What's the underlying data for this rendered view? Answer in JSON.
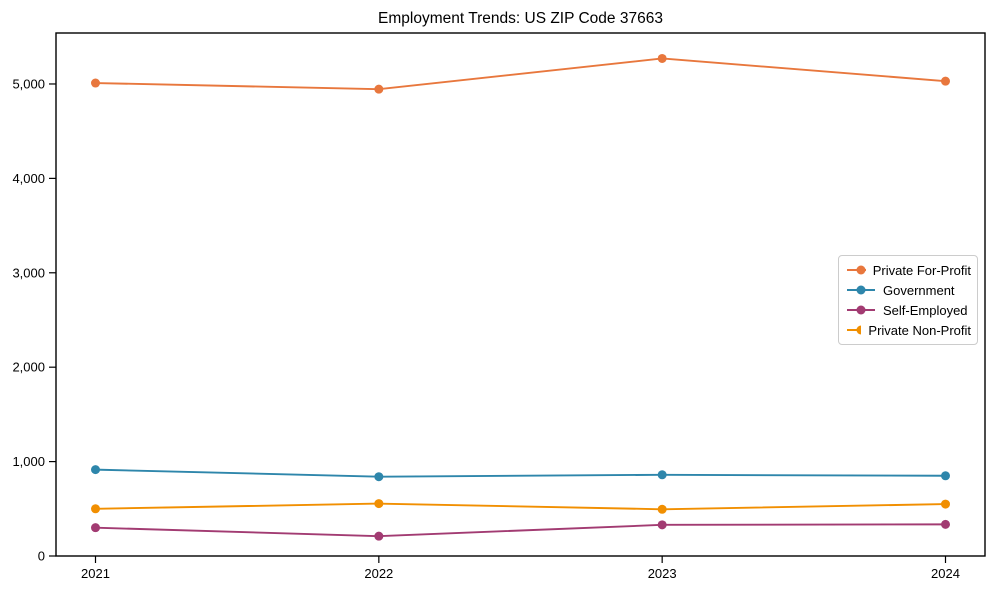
{
  "title": "Employment Trends: US ZIP Code 37663",
  "chart_data": {
    "type": "line",
    "title": "Employment Trends: US ZIP Code 37663",
    "xlabel": "",
    "ylabel": "",
    "x": [
      "2021",
      "2022",
      "2023",
      "2024"
    ],
    "series": [
      {
        "name": "Private For-Profit",
        "color": "#E8773D",
        "values": [
          5010,
          4945,
          5270,
          5030
        ]
      },
      {
        "name": "Government",
        "color": "#2E86AB",
        "values": [
          915,
          840,
          860,
          850
        ]
      },
      {
        "name": "Self-Employed",
        "color": "#A23B72",
        "values": [
          300,
          210,
          330,
          335
        ]
      },
      {
        "name": "Private Non-Profit",
        "color": "#F18F01",
        "values": [
          500,
          555,
          495,
          550
        ]
      }
    ],
    "ylim": [
      0,
      5540
    ],
    "yticks": [
      0,
      1000,
      2000,
      3000,
      4000,
      5000
    ],
    "grid": false,
    "marker": "circle",
    "legend_position": "center-right"
  }
}
